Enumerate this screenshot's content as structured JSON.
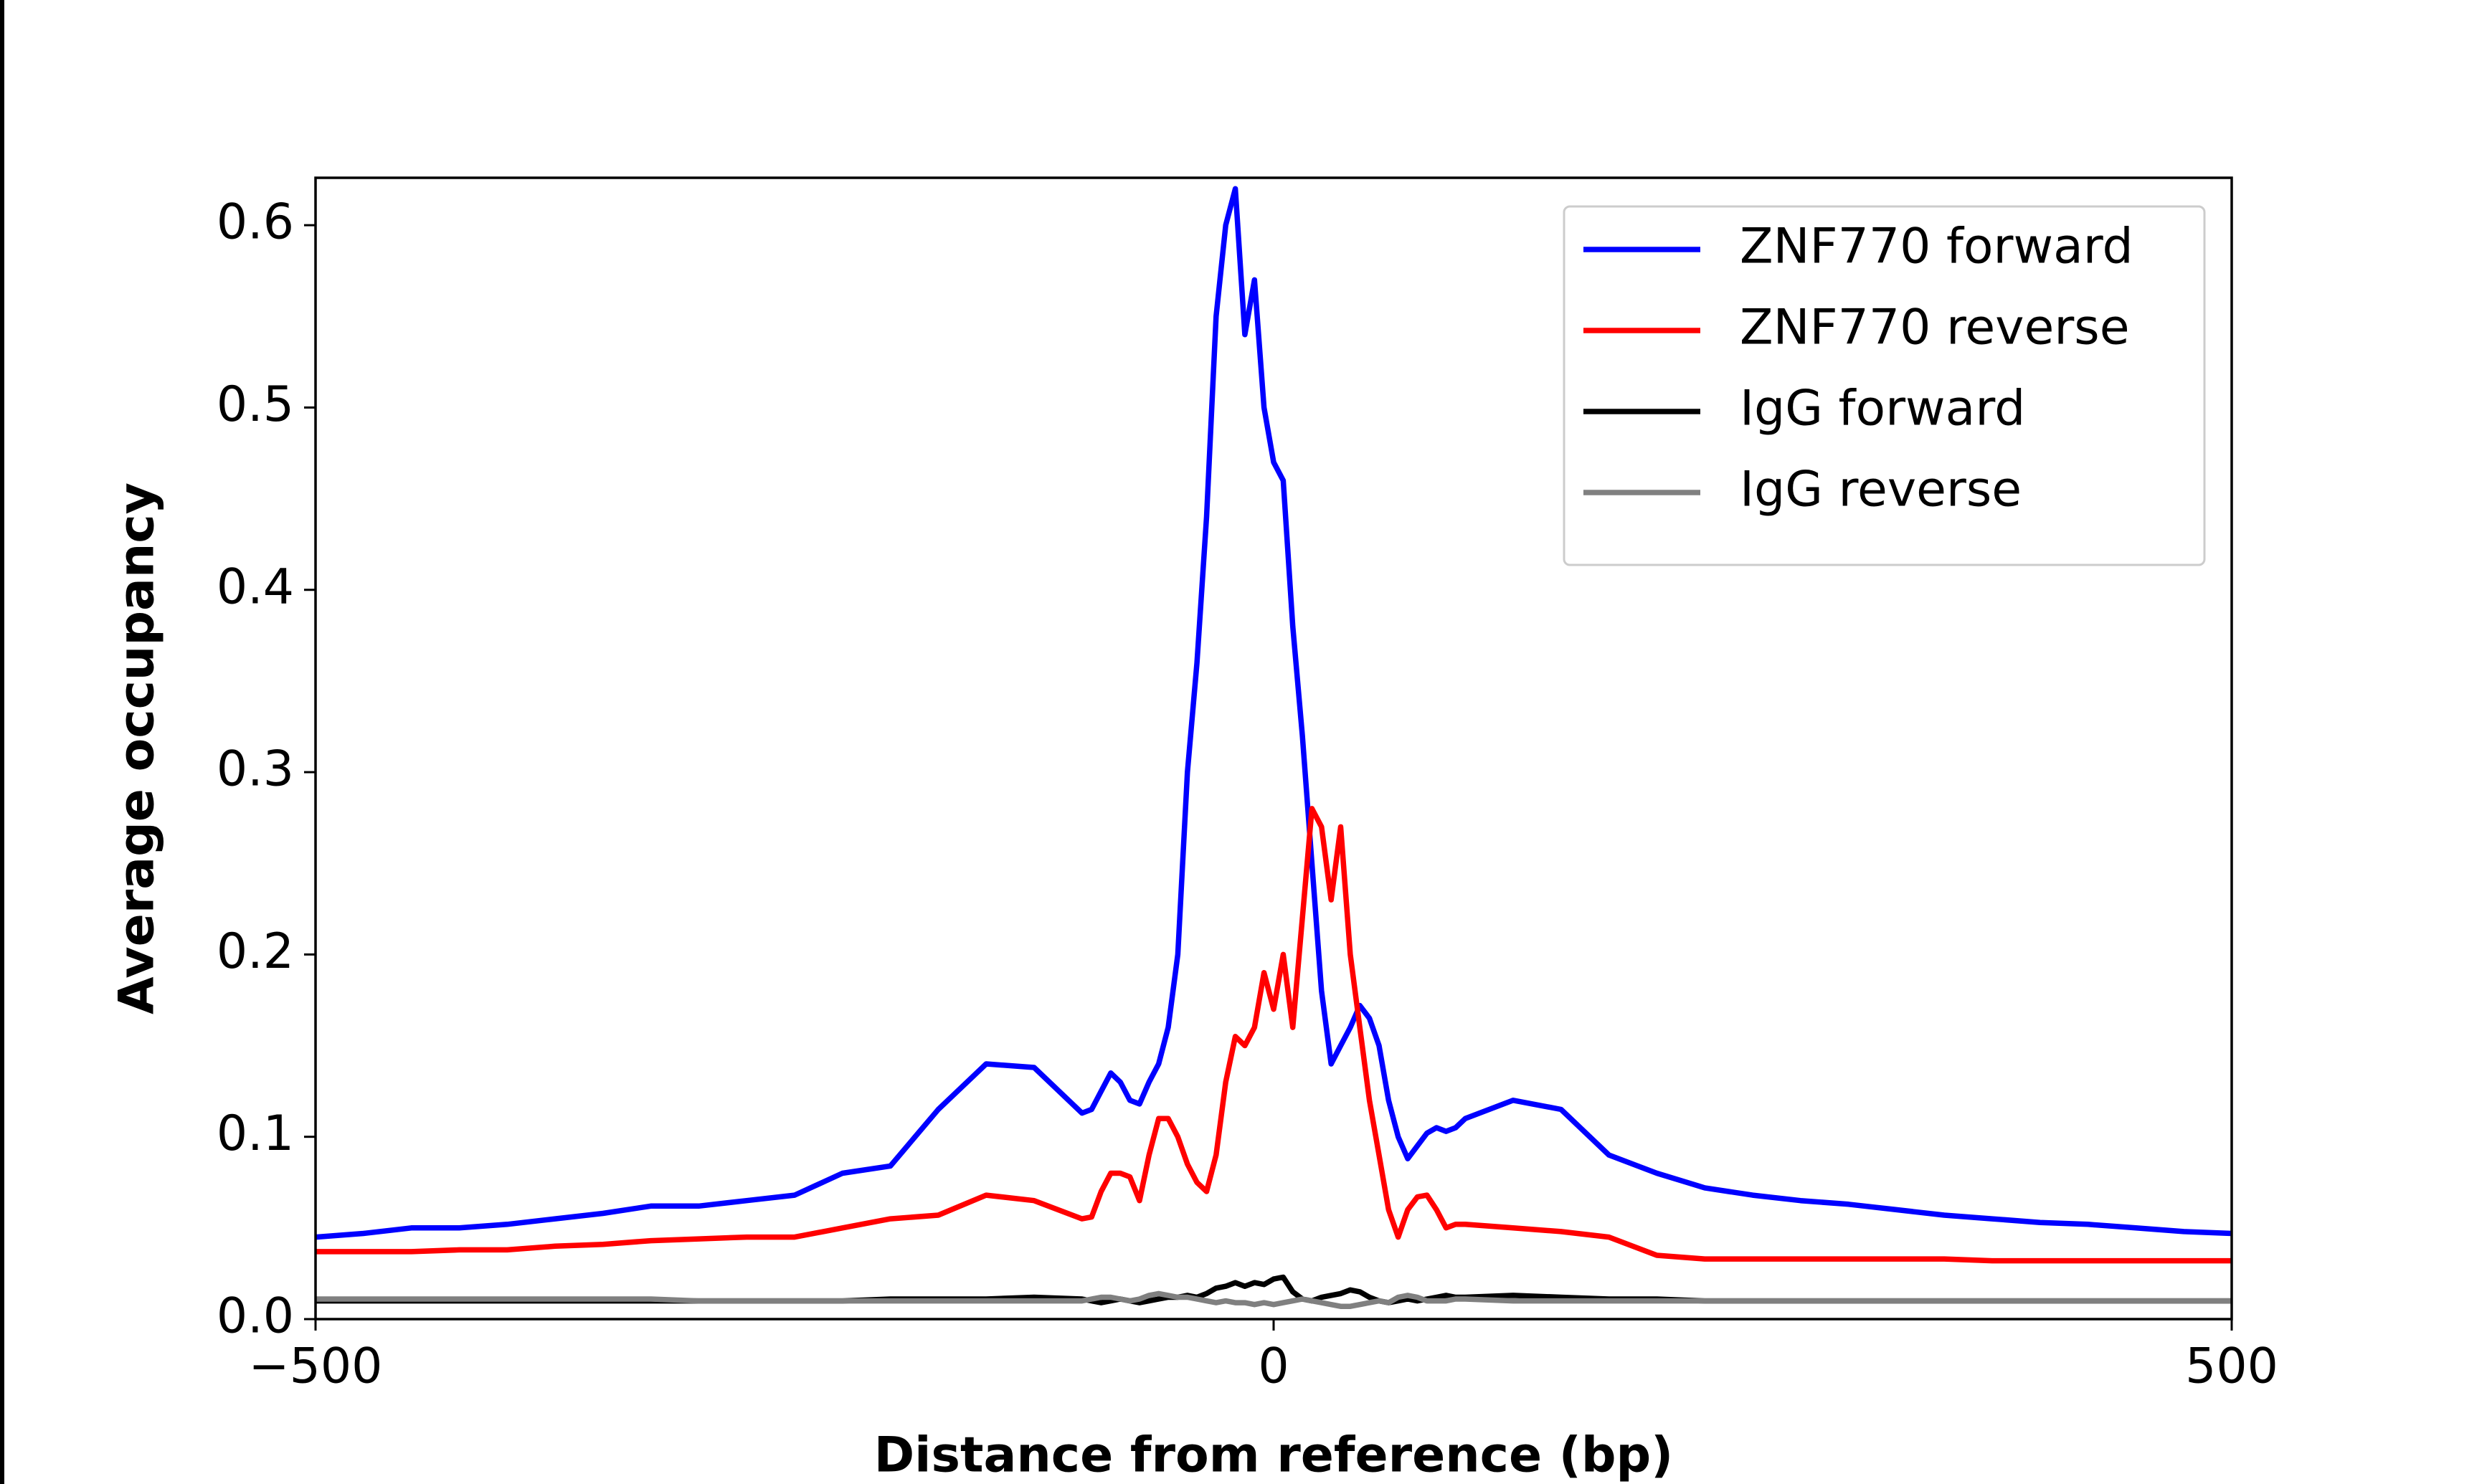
{
  "chart_data": {
    "type": "line",
    "x_label": "Distance from reference (bp)",
    "y_label": "Average occupancy",
    "x": [
      -500,
      -475,
      -450,
      -425,
      -400,
      -375,
      -350,
      -325,
      -300,
      -275,
      -250,
      -225,
      -200,
      -175,
      -150,
      -125,
      -100,
      -95,
      -90,
      -85,
      -80,
      -75,
      -70,
      -65,
      -60,
      -55,
      -50,
      -45,
      -40,
      -35,
      -30,
      -25,
      -20,
      -15,
      -10,
      -5,
      0,
      5,
      10,
      15,
      20,
      25,
      30,
      35,
      40,
      45,
      50,
      55,
      60,
      65,
      70,
      75,
      80,
      85,
      90,
      95,
      100,
      125,
      150,
      175,
      200,
      225,
      250,
      275,
      300,
      325,
      350,
      375,
      400,
      425,
      450,
      475,
      500
    ],
    "series": [
      {
        "name": "ZNF770 forward",
        "color": "#0000ff",
        "values": [
          0.045,
          0.047,
          0.05,
          0.05,
          0.052,
          0.055,
          0.058,
          0.062,
          0.062,
          0.065,
          0.068,
          0.08,
          0.084,
          0.115,
          0.14,
          0.138,
          0.113,
          0.115,
          0.125,
          0.135,
          0.13,
          0.12,
          0.118,
          0.13,
          0.14,
          0.16,
          0.2,
          0.3,
          0.36,
          0.44,
          0.55,
          0.6,
          0.62,
          0.54,
          0.57,
          0.5,
          0.47,
          0.46,
          0.38,
          0.32,
          0.25,
          0.18,
          0.14,
          0.15,
          0.16,
          0.172,
          0.165,
          0.15,
          0.12,
          0.1,
          0.088,
          0.095,
          0.102,
          0.105,
          0.103,
          0.105,
          0.11,
          0.12,
          0.115,
          0.09,
          0.08,
          0.072,
          0.068,
          0.065,
          0.063,
          0.06,
          0.057,
          0.055,
          0.053,
          0.052,
          0.05,
          0.048,
          0.047
        ]
      },
      {
        "name": "ZNF770 reverse",
        "color": "#ff0000",
        "values": [
          0.037,
          0.037,
          0.037,
          0.038,
          0.038,
          0.04,
          0.041,
          0.043,
          0.044,
          0.045,
          0.045,
          0.05,
          0.055,
          0.057,
          0.068,
          0.065,
          0.055,
          0.056,
          0.07,
          0.08,
          0.08,
          0.078,
          0.065,
          0.09,
          0.11,
          0.11,
          0.1,
          0.085,
          0.075,
          0.07,
          0.09,
          0.13,
          0.155,
          0.15,
          0.16,
          0.19,
          0.17,
          0.2,
          0.16,
          0.22,
          0.28,
          0.27,
          0.23,
          0.27,
          0.2,
          0.16,
          0.12,
          0.09,
          0.06,
          0.045,
          0.06,
          0.067,
          0.068,
          0.06,
          0.05,
          0.052,
          0.052,
          0.05,
          0.048,
          0.045,
          0.035,
          0.033,
          0.033,
          0.033,
          0.033,
          0.033,
          0.033,
          0.032,
          0.032,
          0.032,
          0.032,
          0.032,
          0.032
        ]
      },
      {
        "name": "IgG forward",
        "color": "#000000",
        "values": [
          0.01,
          0.01,
          0.01,
          0.01,
          0.01,
          0.01,
          0.01,
          0.01,
          0.01,
          0.01,
          0.01,
          0.01,
          0.011,
          0.011,
          0.011,
          0.012,
          0.011,
          0.01,
          0.009,
          0.01,
          0.011,
          0.01,
          0.009,
          0.01,
          0.011,
          0.012,
          0.012,
          0.013,
          0.012,
          0.014,
          0.017,
          0.018,
          0.02,
          0.018,
          0.02,
          0.019,
          0.022,
          0.023,
          0.015,
          0.011,
          0.01,
          0.012,
          0.013,
          0.014,
          0.016,
          0.015,
          0.012,
          0.01,
          0.009,
          0.01,
          0.011,
          0.01,
          0.011,
          0.012,
          0.013,
          0.012,
          0.012,
          0.013,
          0.012,
          0.011,
          0.011,
          0.01,
          0.01,
          0.01,
          0.01,
          0.01,
          0.01,
          0.01,
          0.01,
          0.01,
          0.01,
          0.01,
          0.01
        ]
      },
      {
        "name": "IgG reverse",
        "color": "#808080",
        "values": [
          0.011,
          0.011,
          0.011,
          0.011,
          0.011,
          0.011,
          0.011,
          0.011,
          0.01,
          0.01,
          0.01,
          0.01,
          0.01,
          0.01,
          0.01,
          0.01,
          0.01,
          0.011,
          0.012,
          0.012,
          0.011,
          0.01,
          0.011,
          0.013,
          0.014,
          0.013,
          0.012,
          0.012,
          0.011,
          0.01,
          0.009,
          0.01,
          0.009,
          0.009,
          0.008,
          0.009,
          0.008,
          0.009,
          0.01,
          0.011,
          0.01,
          0.009,
          0.008,
          0.007,
          0.007,
          0.008,
          0.009,
          0.01,
          0.009,
          0.012,
          0.013,
          0.012,
          0.01,
          0.01,
          0.01,
          0.011,
          0.011,
          0.01,
          0.01,
          0.01,
          0.01,
          0.01,
          0.01,
          0.01,
          0.01,
          0.01,
          0.01,
          0.01,
          0.01,
          0.01,
          0.01,
          0.01,
          0.01
        ]
      }
    ],
    "xlim": [
      -500,
      500
    ],
    "ylim": [
      0,
      0.626
    ],
    "xticks": [
      {
        "value": -500,
        "label": "−500"
      },
      0,
      500
    ],
    "yticks": [
      {
        "value": 0,
        "label": "0.0"
      },
      0.1,
      0.2,
      0.3,
      0.4,
      0.5,
      0.6
    ],
    "grid": false,
    "legend": "upper right"
  }
}
